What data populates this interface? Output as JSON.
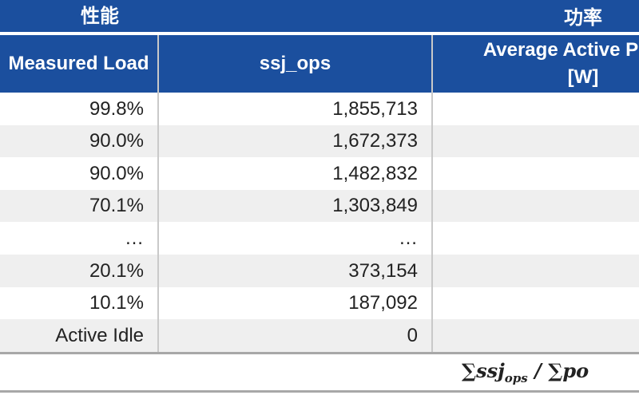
{
  "header": {
    "groups": [
      "性能",
      "功率"
    ],
    "columns": [
      "Measured Load",
      "ssj_ops",
      "Average Active Power [W]"
    ]
  },
  "table": {
    "rows": [
      [
        "99.8%",
        "1,855,713"
      ],
      [
        "90.0%",
        "1,672,373"
      ],
      [
        "90.0%",
        "1,482,832"
      ],
      [
        "70.1%",
        "1,303,849"
      ],
      [
        "…",
        "…"
      ],
      [
        "20.1%",
        "373,154"
      ],
      [
        "10.1%",
        "187,092"
      ],
      [
        "Active Idle",
        "0"
      ]
    ]
  },
  "footer": {
    "formula": [
      "∑",
      "ssj",
      "ops",
      "/",
      "∑",
      "po"
    ]
  }
}
